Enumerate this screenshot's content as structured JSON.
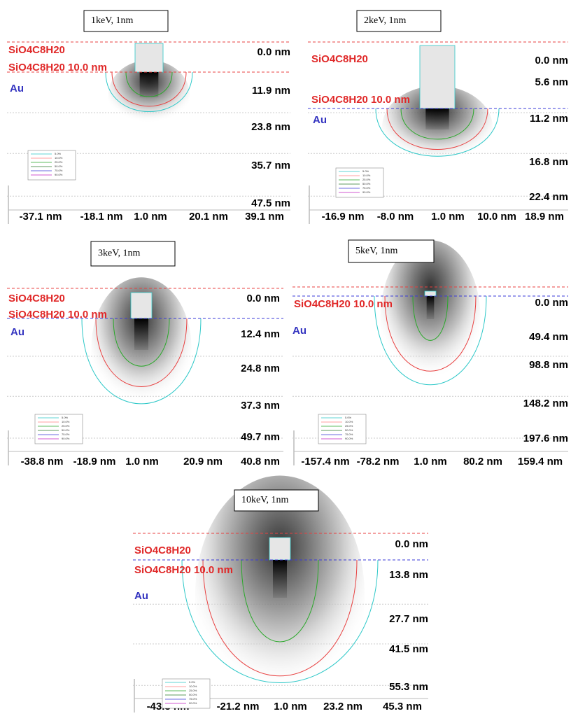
{
  "panels": [
    {
      "title": "1keV, 1nm",
      "layers": [
        "SiO4C8H20",
        "SiO4C8H20 10.0 nm",
        "Au"
      ],
      "y_labels": [
        "0.0 nm",
        "11.9 nm",
        "23.8 nm",
        "35.7 nm",
        "47.5 nm"
      ],
      "x_labels": [
        "-37.1 nm",
        "-18.1 nm",
        "1.0 nm",
        "20.1 nm",
        "39.1 nm"
      ]
    },
    {
      "title": "2keV, 1nm",
      "layers": [
        "SiO4C8H20",
        "SiO4C8H20 10.0 nm",
        "Au"
      ],
      "y_labels": [
        "0.0 nm",
        "5.6 nm",
        "11.2 nm",
        "16.8 nm",
        "22.4 nm"
      ],
      "x_labels": [
        "-16.9 nm",
        "-8.0 nm",
        "1.0 nm",
        "10.0 nm",
        "18.9 nm"
      ]
    },
    {
      "title": "3keV, 1nm",
      "layers": [
        "SiO4C8H20",
        "SiO4C8H20 10.0 nm",
        "Au"
      ],
      "y_labels": [
        "0.0 nm",
        "12.4 nm",
        "24.8 nm",
        "37.3 nm",
        "49.7 nm"
      ],
      "x_labels": [
        "-38.8 nm",
        "-18.9 nm",
        "1.0 nm",
        "20.9 nm",
        "40.8 nm"
      ]
    },
    {
      "title": "5keV, 1nm",
      "layers": [
        "SiO4C8H20 10.0 nm",
        "Au"
      ],
      "y_labels": [
        "0.0 nm",
        "49.4 nm",
        "98.8 nm",
        "148.2 nm",
        "197.6 nm"
      ],
      "x_labels": [
        "-157.4 nm",
        "-78.2 nm",
        "1.0 nm",
        "80.2 nm",
        "159.4 nm"
      ]
    },
    {
      "title": "10keV, 1nm",
      "layers": [
        "SiO4C8H20",
        "SiO4C8H20 10.0 nm",
        "Au"
      ],
      "y_labels": [
        "0.0 nm",
        "13.8 nm",
        "27.7 nm",
        "41.5 nm",
        "55.3 nm"
      ],
      "x_labels": [
        "-43.3 nm",
        "-21.2 nm",
        "1.0 nm",
        "23.2 nm",
        "45.3 nm"
      ]
    }
  ],
  "legend": [
    "5.0%",
    "10.0%",
    "25.0%",
    "50.0%",
    "75.0%",
    "90.0%"
  ]
}
